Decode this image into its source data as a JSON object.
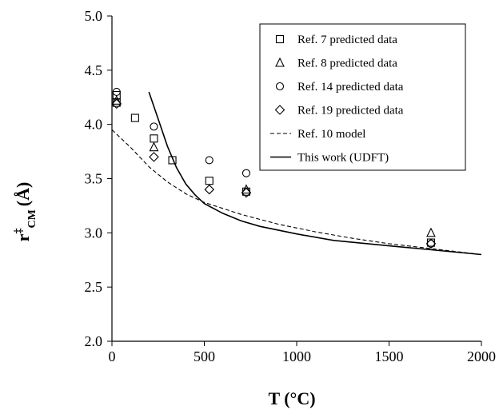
{
  "chart_data": {
    "type": "scatter",
    "title": "",
    "xlabel": "T (°C)",
    "ylabel": {
      "base": "r",
      "sup": "‡",
      "sub": "CM",
      "unit": "(Å)"
    },
    "xlim": [
      0,
      2000
    ],
    "ylim": [
      2.0,
      5.0
    ],
    "x_ticks": [
      0,
      500,
      1000,
      1500,
      2000
    ],
    "y_ticks": [
      "2.0",
      "2.5",
      "3.0",
      "3.5",
      "4.0",
      "4.5",
      "5.0"
    ],
    "grid": false,
    "legend_position": "top-right",
    "series": [
      {
        "name": "Ref. 7 predicted data",
        "marker": "square",
        "points": [
          [
            25,
            4.27
          ],
          [
            25,
            4.2
          ],
          [
            125,
            4.06
          ],
          [
            227,
            3.87
          ],
          [
            327,
            3.67
          ],
          [
            527,
            3.48
          ],
          [
            727,
            3.38
          ],
          [
            1727,
            2.91
          ]
        ]
      },
      {
        "name": "Ref. 8 predicted data",
        "marker": "triangle",
        "points": [
          [
            25,
            4.22
          ],
          [
            227,
            3.79
          ],
          [
            727,
            3.4
          ],
          [
            1727,
            3.0
          ]
        ]
      },
      {
        "name": "Ref. 14 predicted data",
        "marker": "circle",
        "points": [
          [
            25,
            4.3
          ],
          [
            227,
            3.98
          ],
          [
            527,
            3.67
          ],
          [
            727,
            3.55
          ],
          [
            1727,
            2.9
          ]
        ]
      },
      {
        "name": "Ref. 19 predicted data",
        "marker": "diamond",
        "points": [
          [
            25,
            4.19
          ],
          [
            227,
            3.7
          ],
          [
            527,
            3.4
          ],
          [
            727,
            3.37
          ],
          [
            1727,
            2.9
          ]
        ]
      },
      {
        "name": "Ref. 10 model",
        "style": "dashed",
        "points": [
          [
            0,
            3.95
          ],
          [
            100,
            3.79
          ],
          [
            200,
            3.61
          ],
          [
            300,
            3.47
          ],
          [
            400,
            3.36
          ],
          [
            500,
            3.28
          ],
          [
            700,
            3.17
          ],
          [
            900,
            3.08
          ],
          [
            1100,
            3.01
          ],
          [
            1300,
            2.95
          ],
          [
            1500,
            2.9
          ],
          [
            1700,
            2.86
          ],
          [
            2000,
            2.8
          ]
        ]
      },
      {
        "name": "This work (UDFT)",
        "style": "solid",
        "points": [
          [
            200,
            4.3
          ],
          [
            250,
            4.05
          ],
          [
            300,
            3.8
          ],
          [
            350,
            3.6
          ],
          [
            400,
            3.45
          ],
          [
            450,
            3.35
          ],
          [
            500,
            3.27
          ],
          [
            600,
            3.18
          ],
          [
            700,
            3.11
          ],
          [
            800,
            3.06
          ],
          [
            1000,
            2.99
          ],
          [
            1200,
            2.93
          ],
          [
            1500,
            2.88
          ],
          [
            1750,
            2.84
          ],
          [
            2000,
            2.8
          ]
        ]
      }
    ]
  }
}
